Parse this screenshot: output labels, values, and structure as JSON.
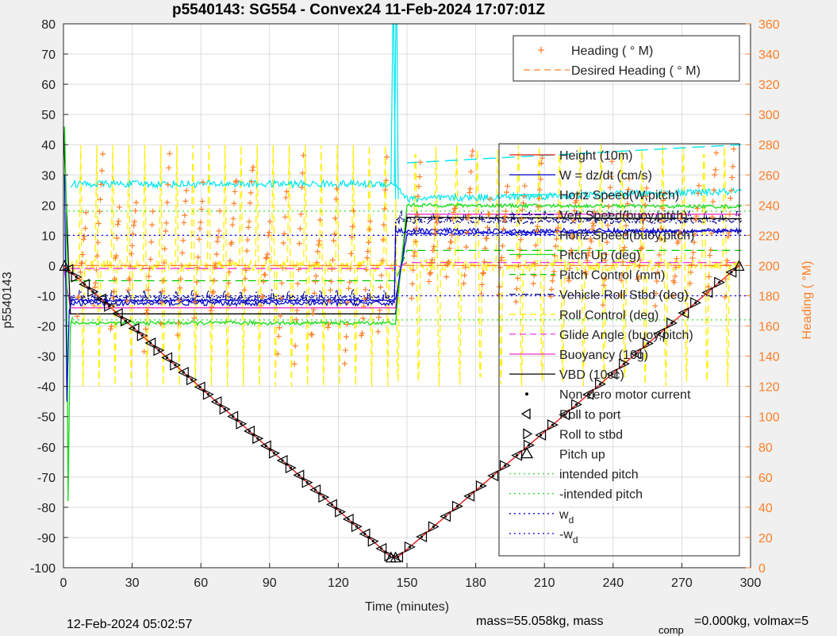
{
  "title": "p5540143: SG554 - Convex24 11-Feb-2024 17:07:01Z",
  "footer": {
    "date": "12-Feb-2024 05:02:57",
    "mass_text": "mass=55.058kg, mass",
    "comp_sub": "comp",
    "mass_rest": "=0.000kg, volmax=5"
  },
  "colors": {
    "height": "#e41a1c",
    "w": "#0000cc",
    "horiz_speed_w": "#00e5ee",
    "vert_speed_buoy": "#000088",
    "horiz_speed_buoy": "#0000dd",
    "pitch_up": "#22dd22",
    "pitch_control": "#00cc00",
    "roll_stbd": "#111188",
    "roll_control": "#ffee00",
    "glide_angle": "#ee33ee",
    "buoyancy": "#ee33cc",
    "vbd": "#000000",
    "heading": "#ff7f27",
    "intended_pitch": "#33dd33",
    "wd": "#0000ee"
  },
  "chart_data": {
    "type": "line",
    "xlabel": "Time (minutes)",
    "ylabel": "p5540143",
    "y2label": "Heading (  °M)",
    "xlim": [
      0,
      300
    ],
    "ylim": [
      -100,
      80
    ],
    "y2lim": [
      0,
      360
    ],
    "xticks": [
      "0",
      "30",
      "60",
      "90",
      "120",
      "150",
      "180",
      "210",
      "240",
      "270",
      "300"
    ],
    "yticks": [
      "-100",
      "-90",
      "-80",
      "-70",
      "-60",
      "-50",
      "-40",
      "-30",
      "-20",
      "-10",
      "0",
      "10",
      "20",
      "30",
      "40",
      "50",
      "60",
      "70",
      "80"
    ],
    "y2ticks": [
      "0",
      "20",
      "40",
      "60",
      "80",
      "100",
      "120",
      "140",
      "160",
      "180",
      "200",
      "220",
      "240",
      "260",
      "280",
      "300",
      "320",
      "340",
      "360"
    ],
    "grid": true,
    "legend_top": [
      {
        "label": "Heading (  ° M)",
        "style": "plus"
      },
      {
        "label": "Desired Heading (   ° M)",
        "style": "dash"
      }
    ],
    "legend_main": [
      {
        "label": "Height (10m)",
        "style": "solid"
      },
      {
        "label": "W = dz/dt (cm/s)",
        "style": "solid"
      },
      {
        "label": "Horiz Speed(W,pitch)",
        "style": "solid"
      },
      {
        "label": "Vert Speed(buoy,pitch)",
        "style": "dashdot"
      },
      {
        "label": "Horiz Speed(buoy,pitch)",
        "style": "dashdot"
      },
      {
        "label": "Pitch Up (deg)",
        "style": "solid"
      },
      {
        "label": "Pitch Control (mm)",
        "style": "dash"
      },
      {
        "label": "Vehicle Roll Stbd (deg)",
        "style": "dashdot"
      },
      {
        "label": "Roll Control (deg)",
        "style": "dash"
      },
      {
        "label": "Glide Angle (buoy,pitch)",
        "style": "dash"
      },
      {
        "label": "Buoyancy (10g)",
        "style": "solid"
      },
      {
        "label": "VBD (10cc)",
        "style": "solid"
      },
      {
        "label": "Non-zero motor current",
        "style": "dot"
      },
      {
        "label": "Roll to port",
        "style": "tri-left"
      },
      {
        "label": "Roll to stbd",
        "style": "tri-right"
      },
      {
        "label": "Pitch up",
        "style": "tri-up"
      },
      {
        "label": "intended pitch",
        "style": "dotted"
      },
      {
        "label": "-intended pitch",
        "style": "dotted"
      },
      {
        "label": "w",
        "sub": "d",
        "style": "dotted"
      },
      {
        "label": "-w",
        "sub": "d",
        "style": "dotted"
      }
    ],
    "series": [
      {
        "name": "Height (10m)",
        "x": [
          0,
          143,
          146,
          295
        ],
        "y": [
          0,
          -96.5,
          -96.5,
          0
        ]
      },
      {
        "name": "VBD (10cc)",
        "x": [
          0,
          3,
          145,
          150,
          296
        ],
        "y": [
          46,
          -16,
          -16,
          16,
          15.5
        ]
      },
      {
        "name": "Buoyancy (10g)",
        "x": [
          0,
          3,
          145,
          150,
          296
        ],
        "y": [
          0,
          -14,
          -14,
          17,
          17
        ]
      },
      {
        "name": "Glide Angle (buoy,pitch)",
        "x": [
          3,
          145,
          150,
          296
        ],
        "y": [
          -1,
          -1,
          1,
          1
        ]
      },
      {
        "name": "Pitch Control (mm)",
        "x": [
          3,
          145,
          150,
          296
        ],
        "y": [
          -5,
          -5,
          5,
          5
        ]
      },
      {
        "name": "Pitch Up (deg)",
        "x": [
          3,
          145,
          150,
          296
        ],
        "y": [
          -19,
          -19,
          20,
          19.5
        ]
      },
      {
        "name": "Horiz Speed(W,pitch)",
        "x": [
          3,
          145,
          150,
          296
        ],
        "y": [
          27,
          27,
          22,
          24.5
        ]
      },
      {
        "name": "Horiz Speed(buoy,pitch)",
        "x": [
          3,
          145,
          150,
          296
        ],
        "y": [
          -11.5,
          -11.5,
          10.5,
          11.5
        ]
      },
      {
        "name": "intended pitch",
        "x": [
          0,
          300
        ],
        "y": [
          18,
          18
        ]
      },
      {
        "name": "-intended pitch",
        "x": [
          0,
          300
        ],
        "y": [
          -18,
          -18
        ]
      },
      {
        "name": "w",
        "x": [
          0,
          300
        ],
        "y": [
          10,
          10
        ]
      },
      {
        "name": "-w",
        "x": [
          0,
          300
        ],
        "y": [
          -10,
          -10
        ]
      },
      {
        "name": "Desired Heading (   ° M)",
        "x": [
          3,
          145,
          150,
          296
        ],
        "y2": [
          200,
          200,
          200,
          200
        ]
      }
    ]
  }
}
